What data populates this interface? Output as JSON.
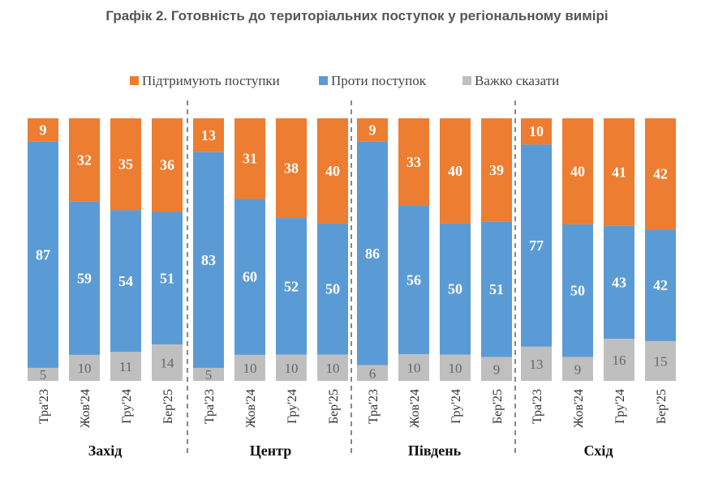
{
  "title": "Графік 2. Готовність до територіальних поступок у регіональному вимірі",
  "chart_data": {
    "type": "bar",
    "stacked": true,
    "legend_position": "top",
    "ylim": [
      0,
      100
    ],
    "series_meta": [
      {
        "name": "Підтримують поступки",
        "color": "#ED7D31"
      },
      {
        "name": "Проти поступок",
        "color": "#5B9BD5"
      },
      {
        "name": "Важко сказати",
        "color": "#BFBFBF"
      }
    ],
    "groups": [
      {
        "name": "Захід",
        "categories": [
          "Тра'23",
          "Жов'24",
          "Гру'24",
          "Бер'25"
        ],
        "support": [
          9,
          32,
          35,
          36
        ],
        "against": [
          87,
          59,
          54,
          51
        ],
        "unsure": [
          5,
          10,
          11,
          14
        ]
      },
      {
        "name": "Центр",
        "categories": [
          "Тра'23",
          "Жов'24",
          "Гру'24",
          "Бер'25"
        ],
        "support": [
          13,
          31,
          38,
          40
        ],
        "against": [
          83,
          60,
          52,
          50
        ],
        "unsure": [
          5,
          10,
          10,
          10
        ]
      },
      {
        "name": "Південь",
        "categories": [
          "Тра'23",
          "Жов'24",
          "Гру'24",
          "Бер'25"
        ],
        "support": [
          9,
          33,
          40,
          39
        ],
        "against": [
          86,
          56,
          50,
          51
        ],
        "unsure": [
          6,
          10,
          10,
          9
        ]
      },
      {
        "name": "Схід",
        "categories": [
          "Тра'23",
          "Жов'24",
          "Гру'24",
          "Бер'25"
        ],
        "support": [
          10,
          40,
          41,
          42
        ],
        "against": [
          77,
          50,
          43,
          42
        ],
        "unsure": [
          13,
          9,
          16,
          15
        ]
      }
    ]
  }
}
